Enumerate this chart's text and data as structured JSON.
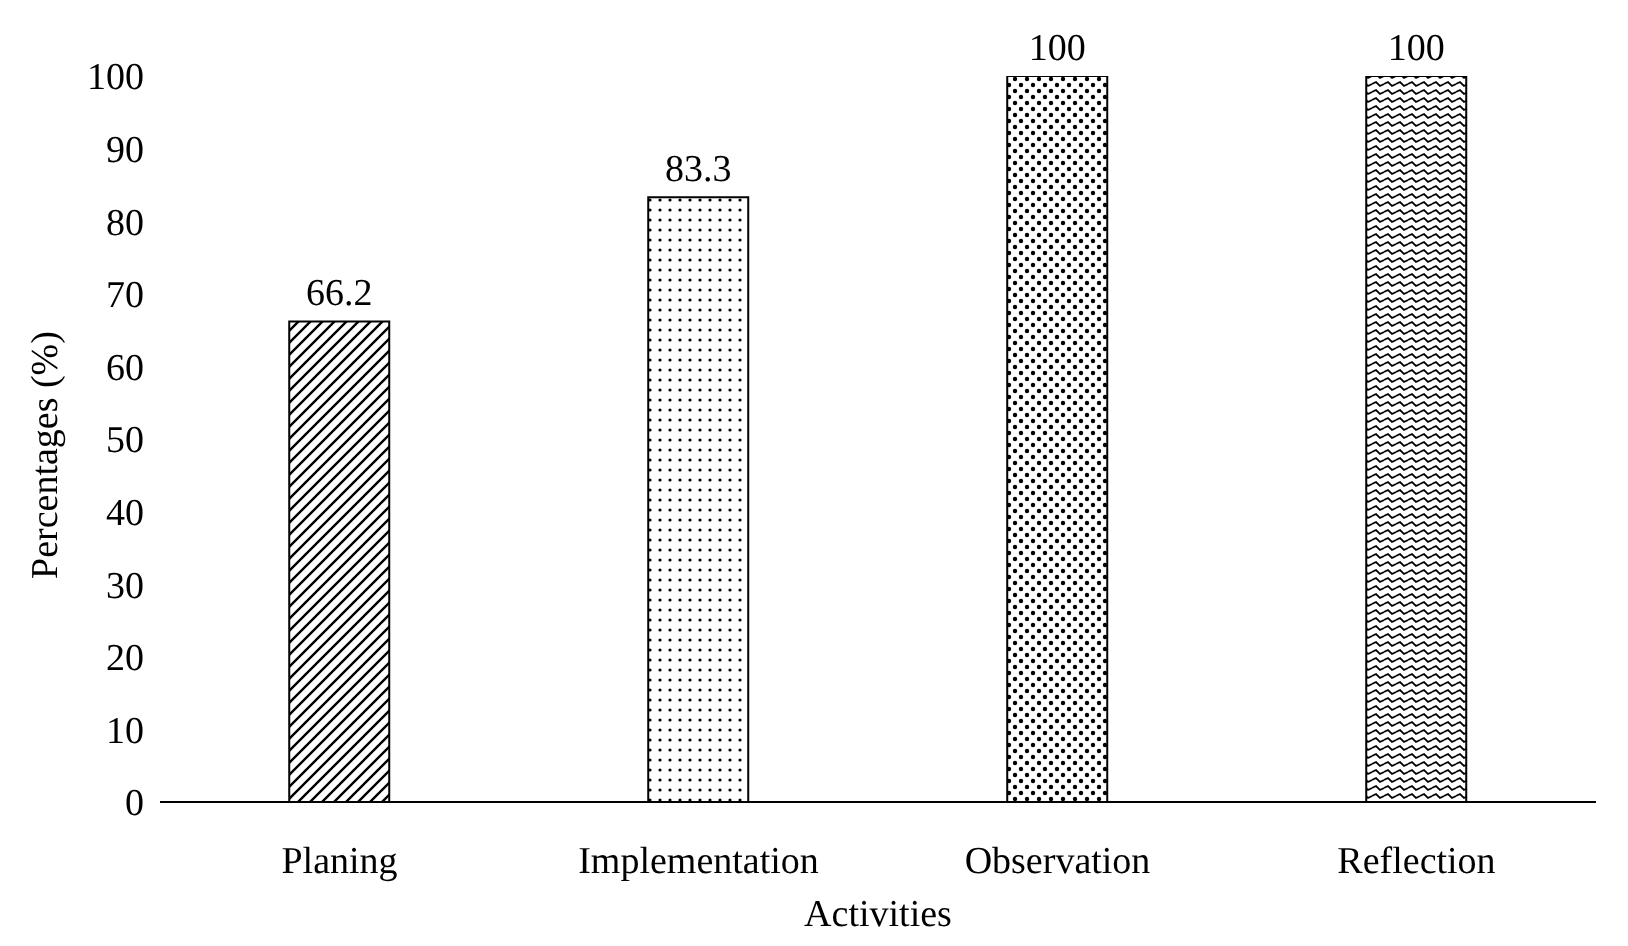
{
  "chart_data": {
    "type": "bar",
    "xlabel": "Activities",
    "ylabel": "Percentages (%)",
    "categories": [
      "Planing",
      "Implementation",
      "Observation",
      "Reflection"
    ],
    "values": [
      66.2,
      83.3,
      100,
      100
    ],
    "colors": [
      "#000000",
      "#000000",
      "#000000",
      "#000000"
    ],
    "ylim": [
      0,
      100
    ],
    "yticks": [
      0,
      10,
      20,
      30,
      40,
      50,
      60,
      70,
      80,
      90,
      100
    ],
    "data_labels": true,
    "grid": false,
    "legend": false
  }
}
